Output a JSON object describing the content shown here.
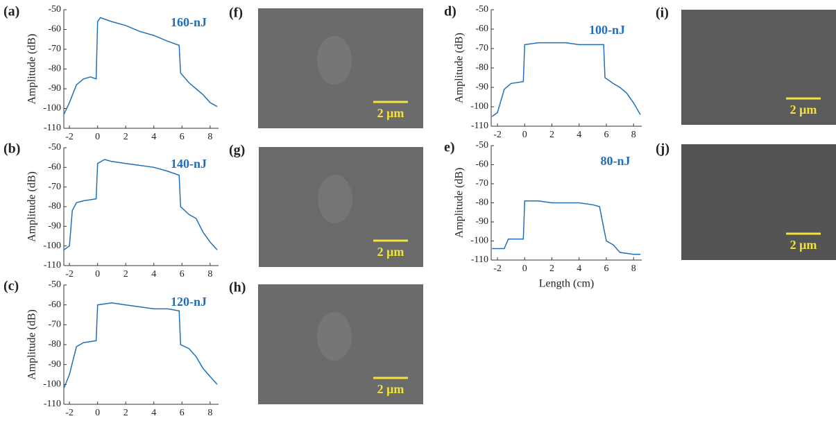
{
  "chart_data": [
    {
      "type": "line",
      "panel_label": "(a)",
      "annotation": "160-nJ",
      "ylabel": "Amplitude (dB)",
      "color": "#1f6fb8",
      "xlim": [
        -2.4,
        8.6
      ],
      "xticks": [
        -2,
        0,
        2,
        4,
        6,
        8
      ],
      "ylim": [
        -110,
        -50
      ],
      "yticks": [
        -110,
        -100,
        -90,
        -80,
        -70,
        -60,
        -50
      ],
      "x": [
        -2.4,
        -2,
        -1.5,
        -1,
        -0.5,
        -0.1,
        0,
        0.2,
        1,
        2,
        3,
        4,
        5,
        5.8,
        5.9,
        6.5,
        7,
        7.5,
        8,
        8.5
      ],
      "values": [
        -103,
        -97,
        -88,
        -85,
        -84,
        -85,
        -56,
        -54,
        -56,
        -58,
        -61,
        -63,
        -66,
        -68,
        -82,
        -87,
        -90,
        -93,
        -97,
        -99
      ]
    },
    {
      "type": "line",
      "panel_label": "(b)",
      "annotation": "140-nJ",
      "ylabel": "Amplitude (dB)",
      "color": "#1f6fb8",
      "xlim": [
        -2.4,
        8.6
      ],
      "xticks": [
        -2,
        0,
        2,
        4,
        6,
        8
      ],
      "ylim": [
        -110,
        -50
      ],
      "yticks": [
        -110,
        -100,
        -90,
        -80,
        -70,
        -60,
        -50
      ],
      "x": [
        -2.4,
        -2,
        -1.8,
        -1.5,
        -1,
        -0.1,
        0,
        0.5,
        1,
        2,
        3,
        4,
        5,
        5.8,
        5.9,
        6.5,
        7,
        7.5,
        8,
        8.5
      ],
      "values": [
        -102,
        -100,
        -82,
        -78,
        -77,
        -76,
        -58,
        -56,
        -57,
        -58,
        -59,
        -60,
        -62,
        -64,
        -80,
        -84,
        -86,
        -93,
        -98,
        -102
      ]
    },
    {
      "type": "line",
      "panel_label": "(c)",
      "annotation": "120-nJ",
      "ylabel": "Amplitude (dB)",
      "color": "#1f6fb8",
      "xlim": [
        -2.4,
        8.6
      ],
      "xticks": [
        -2,
        0,
        2,
        4,
        6,
        8
      ],
      "ylim": [
        -110,
        -50
      ],
      "yticks": [
        -110,
        -100,
        -90,
        -80,
        -70,
        -60,
        -50
      ],
      "x": [
        -2.4,
        -2,
        -1.5,
        -1,
        -0.1,
        0,
        1,
        2,
        3,
        4,
        5,
        5.8,
        5.9,
        6.5,
        7,
        7.5,
        8,
        8.5
      ],
      "values": [
        -102,
        -95,
        -81,
        -79,
        -78,
        -60,
        -59,
        -60,
        -61,
        -62,
        -62,
        -63,
        -80,
        -82,
        -86,
        -92,
        -96,
        -100
      ]
    },
    {
      "type": "line",
      "panel_label": "d)",
      "annotation": "100-nJ",
      "ylabel": "Amplitude (dB)",
      "color": "#1f6fb8",
      "xlim": [
        -2.46,
        8.6
      ],
      "xticks": [
        -2,
        0,
        2,
        4,
        6,
        8
      ],
      "ylim": [
        -110,
        -50
      ],
      "yticks": [
        -110,
        -100,
        -90,
        -80,
        -70,
        -60,
        -50
      ],
      "x": [
        -2.4,
        -2,
        -1.5,
        -1,
        -0.1,
        0,
        1,
        2,
        3,
        4,
        5,
        5.8,
        5.9,
        6.5,
        7,
        7.5,
        8,
        8.5
      ],
      "values": [
        -105,
        -103,
        -91,
        -88,
        -87,
        -68,
        -67,
        -67,
        -67,
        -68,
        -68,
        -68,
        -85,
        -88,
        -90,
        -93,
        -98,
        -104
      ]
    },
    {
      "type": "line",
      "panel_label": "e)",
      "annotation": "80-nJ",
      "ylabel": "Amplitude (dB)",
      "xlabel": "Length (cm)",
      "color": "#1f6fb8",
      "xlim": [
        -2.46,
        8.6
      ],
      "xticks": [
        -2,
        0,
        2,
        4,
        6,
        8
      ],
      "ylim": [
        -110,
        -50
      ],
      "yticks": [
        -110,
        -100,
        -90,
        -80,
        -70,
        -60,
        -50
      ],
      "x": [
        -2.4,
        -1.5,
        -1.2,
        -0.1,
        0,
        1,
        2,
        3,
        4,
        5,
        5.5,
        5.8,
        6,
        6.5,
        7,
        8,
        8.5
      ],
      "values": [
        -104,
        -104,
        -99,
        -99,
        -79,
        -79,
        -80,
        -80,
        -80,
        -81,
        -82,
        -93,
        -100,
        -102,
        -106,
        -107,
        -107
      ]
    }
  ],
  "images": [
    {
      "label": "(f)",
      "scale_bar": "2 μm"
    },
    {
      "label": "(g)",
      "scale_bar": "2 μm"
    },
    {
      "label": "(h)",
      "scale_bar": "2 μm"
    },
    {
      "label": "(i)",
      "scale_bar": "2 μm"
    },
    {
      "label": "(j)",
      "scale_bar": "2 μm"
    }
  ]
}
